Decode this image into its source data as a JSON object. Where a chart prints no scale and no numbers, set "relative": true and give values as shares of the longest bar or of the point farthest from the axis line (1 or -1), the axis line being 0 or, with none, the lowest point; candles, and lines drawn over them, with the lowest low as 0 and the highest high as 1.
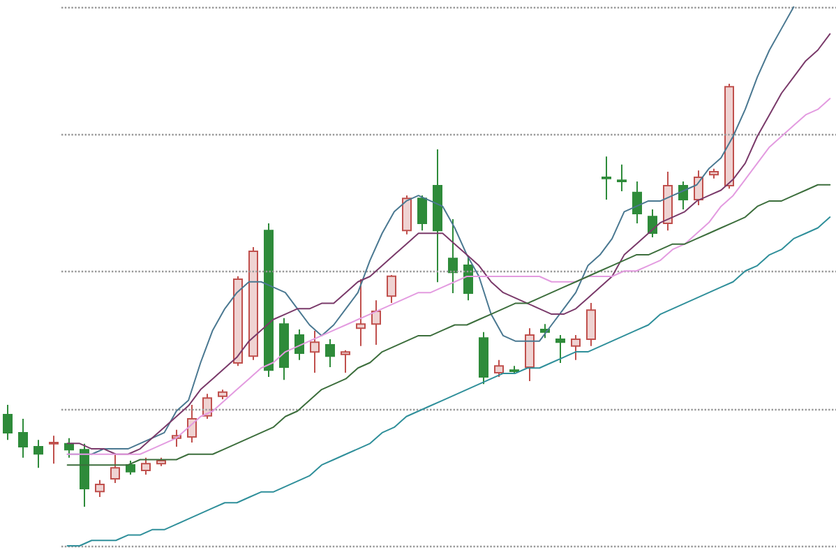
{
  "chart_data": [
    {
      "type": "candlestick",
      "relative": true,
      "categories": [
        null,
        null,
        null,
        null,
        null,
        null,
        null,
        null,
        null,
        null,
        null,
        null,
        null,
        null,
        null,
        null,
        null,
        null,
        null,
        null,
        null,
        null,
        null,
        null,
        null,
        null,
        null,
        null,
        null,
        null,
        null,
        null,
        null,
        null,
        null,
        null,
        null,
        null,
        null,
        null,
        null,
        null,
        null,
        null,
        null,
        null,
        null,
        null
      ],
      "ohlc": [
        [
          0.218,
          0.241,
          0.158,
          0.175
        ],
        [
          0.175,
          0.208,
          0.116,
          0.142
        ],
        [
          0.142,
          0.158,
          0.092,
          0.125
        ],
        [
          0.149,
          0.168,
          0.102,
          0.152
        ],
        [
          0.149,
          0.162,
          0.116,
          0.135
        ],
        [
          0.135,
          0.149,
          0,
          0.043
        ],
        [
          0.036,
          0.063,
          0.023,
          0.053
        ],
        [
          0.066,
          0.125,
          0.056,
          0.092
        ],
        [
          0.099,
          0.109,
          0.076,
          0.083
        ],
        [
          0.086,
          0.116,
          0.076,
          0.102
        ],
        [
          0.102,
          0.116,
          0.096,
          0.109
        ],
        [
          0.162,
          0.182,
          0.142,
          0.168
        ],
        [
          0.165,
          0.241,
          0.152,
          0.208
        ],
        [
          0.215,
          0.267,
          0.208,
          0.257
        ],
        [
          0.261,
          0.277,
          0.254,
          0.271
        ],
        [
          0.34,
          0.545,
          0.333,
          0.538
        ],
        [
          0.356,
          0.614,
          0.347,
          0.604
        ],
        [
          0.653,
          0.67,
          0.307,
          0.323
        ],
        [
          0.432,
          0.446,
          0.3,
          0.33
        ],
        [
          0.406,
          0.419,
          0.347,
          0.363
        ],
        [
          0.366,
          0.416,
          0.317,
          0.389
        ],
        [
          0.383,
          0.396,
          0.33,
          0.356
        ],
        [
          0.36,
          0.37,
          0.317,
          0.366
        ],
        [
          0.422,
          0.538,
          0.38,
          0.432
        ],
        [
          0.432,
          0.488,
          0.383,
          0.462
        ],
        [
          0.498,
          0.548,
          0.482,
          0.545
        ],
        [
          0.653,
          0.736,
          0.644,
          0.729
        ],
        [
          0.729,
          0.736,
          0.653,
          0.67
        ],
        [
          0.759,
          0.845,
          0.531,
          0.653
        ],
        [
          0.587,
          0.68,
          0.505,
          0.554
        ],
        [
          0.571,
          0.594,
          0.488,
          0.505
        ],
        [
          0.399,
          0.413,
          0.29,
          0.307
        ],
        [
          0.317,
          0.347,
          0.307,
          0.333
        ],
        [
          0.323,
          0.333,
          0.314,
          0.32
        ],
        [
          0.33,
          0.422,
          0.297,
          0.406
        ],
        [
          0.419,
          0.432,
          0.399,
          0.413
        ],
        [
          0.396,
          0.406,
          0.34,
          0.389
        ],
        [
          0.38,
          0.406,
          0.347,
          0.396
        ],
        [
          0.396,
          0.482,
          0.38,
          0.465
        ],
        [
          0.779,
          0.828,
          0.726,
          0.776
        ],
        [
          0.772,
          0.809,
          0.746,
          0.769
        ],
        [
          0.743,
          0.769,
          0.67,
          0.693
        ],
        [
          0.686,
          0.703,
          0.637,
          0.647
        ],
        [
          0.67,
          0.792,
          0.653,
          0.759
        ],
        [
          0.759,
          0.769,
          0.703,
          0.726
        ],
        [
          0.726,
          0.795,
          0.713,
          0.779
        ],
        [
          0.785,
          0.799,
          0.776,
          0.792
        ],
        [
          0.759,
          1,
          0.752,
          0.993
        ]
      ],
      "colors": [
        "#2e8b3a",
        "#2e8b3a",
        "#2e8b3a",
        "#c0504d",
        "#2e8b3a",
        "#2e8b3a",
        "#c0504d",
        "#c0504d",
        "#2e8b3a",
        "#c0504d",
        "#c0504d",
        "#c0504d",
        "#c0504d",
        "#c0504d",
        "#c0504d",
        "#c0504d",
        "#c0504d",
        "#2e8b3a",
        "#2e8b3a",
        "#2e8b3a",
        "#c0504d",
        "#2e8b3a",
        "#c0504d",
        "#c0504d",
        "#c0504d",
        "#c0504d",
        "#c0504d",
        "#2e8b3a",
        "#2e8b3a",
        "#2e8b3a",
        "#2e8b3a",
        "#2e8b3a",
        "#c0504d",
        "#2e8b3a",
        "#c0504d",
        "#2e8b3a",
        "#2e8b3a",
        "#c0504d",
        "#c0504d",
        "#2e8b3a",
        "#2e8b3a",
        "#2e8b3a",
        "#2e8b3a",
        "#c0504d",
        "#2e8b3a",
        "#c0504d",
        "#c0504d",
        "#c0504d"
      ]
    },
    {
      "type": "line",
      "relative": true,
      "grid": "y",
      "categories": [
        null,
        null,
        null,
        null,
        null,
        null,
        null,
        null,
        null,
        null,
        null,
        null,
        null,
        null,
        null,
        null,
        null,
        null,
        null,
        null,
        null,
        null,
        null,
        null,
        null,
        null,
        null,
        null,
        null,
        null,
        null,
        null,
        null,
        null,
        null,
        null,
        null,
        null,
        null,
        null,
        null,
        null,
        null,
        null,
        null,
        null,
        null,
        null,
        null,
        null,
        null,
        null,
        null,
        null,
        null,
        null,
        null,
        null,
        null,
        null,
        null,
        null,
        null,
        null
      ],
      "series": [
        {
          "color": "#4a7891",
          "values": [
            0.17,
            0.17,
            0.17,
            0.18,
            0.18,
            0.18,
            0.19,
            0.2,
            0.21,
            0.25,
            0.27,
            0.34,
            0.4,
            0.44,
            0.47,
            0.49,
            0.49,
            0.48,
            0.47,
            0.44,
            0.41,
            0.39,
            0.41,
            0.44,
            0.47,
            0.53,
            0.58,
            0.62,
            0.64,
            0.65,
            0.64,
            0.63,
            0.59,
            0.54,
            0.5,
            0.43,
            0.39,
            0.38,
            0.38,
            0.38,
            0.41,
            0.44,
            0.47,
            0.52,
            0.54,
            0.57,
            0.62,
            0.63,
            0.64,
            0.64,
            0.65,
            0.66,
            0.67,
            0.7,
            0.72,
            0.76,
            0.81,
            0.87,
            0.92,
            0.96,
            1,
            null,
            null,
            null
          ]
        },
        {
          "color": "#7a3a6a",
          "values": [
            0.19,
            0.19,
            0.18,
            0.18,
            0.17,
            0.17,
            0.18,
            0.2,
            0.22,
            0.24,
            0.26,
            0.29,
            0.31,
            0.33,
            0.35,
            0.38,
            0.4,
            0.42,
            0.43,
            0.44,
            0.44,
            0.45,
            0.45,
            0.47,
            0.49,
            0.5,
            0.52,
            0.54,
            0.56,
            0.58,
            0.58,
            0.58,
            0.56,
            0.54,
            0.52,
            0.49,
            0.47,
            0.46,
            0.45,
            0.44,
            0.43,
            0.43,
            0.44,
            0.46,
            0.48,
            0.5,
            0.54,
            0.56,
            0.58,
            0.6,
            0.61,
            0.62,
            0.64,
            0.65,
            0.66,
            0.68,
            0.71,
            0.76,
            0.8,
            0.84,
            0.87,
            0.9,
            0.92,
            0.95
          ]
        },
        {
          "color": "#e39be0",
          "values": [
            0.17,
            0.17,
            0.17,
            0.17,
            0.17,
            0.17,
            0.17,
            0.18,
            0.19,
            0.2,
            0.22,
            0.24,
            0.25,
            0.27,
            0.29,
            0.31,
            0.33,
            0.34,
            0.36,
            0.37,
            0.38,
            0.39,
            0.4,
            0.41,
            0.42,
            0.43,
            0.44,
            0.45,
            0.46,
            0.47,
            0.47,
            0.48,
            0.49,
            0.5,
            0.5,
            0.5,
            0.5,
            0.5,
            0.5,
            0.5,
            0.49,
            0.49,
            0.49,
            0.5,
            0.5,
            0.5,
            0.51,
            0.51,
            0.52,
            0.53,
            0.55,
            0.56,
            0.58,
            0.6,
            0.63,
            0.65,
            0.68,
            0.71,
            0.74,
            0.76,
            0.78,
            0.8,
            0.81,
            0.83
          ]
        },
        {
          "color": "#3c6e3c",
          "values": [
            0.15,
            0.15,
            0.15,
            0.15,
            0.15,
            0.15,
            0.16,
            0.16,
            0.16,
            0.16,
            0.17,
            0.17,
            0.17,
            0.18,
            0.19,
            0.2,
            0.21,
            0.22,
            0.24,
            0.25,
            0.27,
            0.29,
            0.3,
            0.31,
            0.33,
            0.34,
            0.36,
            0.37,
            0.38,
            0.39,
            0.39,
            0.4,
            0.41,
            0.41,
            0.42,
            0.43,
            0.44,
            0.45,
            0.45,
            0.46,
            0.47,
            0.48,
            0.49,
            0.5,
            0.51,
            0.52,
            0.53,
            0.54,
            0.54,
            0.55,
            0.56,
            0.56,
            0.57,
            0.58,
            0.59,
            0.6,
            0.61,
            0.63,
            0.64,
            0.64,
            0.65,
            0.66,
            0.67,
            0.67
          ]
        },
        {
          "color": "#2f8f9a",
          "values": [
            0,
            0,
            0.01,
            0.01,
            0.01,
            0.02,
            0.02,
            0.03,
            0.03,
            0.04,
            0.05,
            0.06,
            0.07,
            0.08,
            0.08,
            0.09,
            0.1,
            0.1,
            0.11,
            0.12,
            0.13,
            0.15,
            0.16,
            0.17,
            0.18,
            0.19,
            0.21,
            0.22,
            0.24,
            0.25,
            0.26,
            0.27,
            0.28,
            0.29,
            0.3,
            0.31,
            0.32,
            0.32,
            0.33,
            0.33,
            0.34,
            0.35,
            0.36,
            0.36,
            0.37,
            0.38,
            0.39,
            0.4,
            0.41,
            0.43,
            0.44,
            0.45,
            0.46,
            0.47,
            0.48,
            0.49,
            0.51,
            0.52,
            0.54,
            0.55,
            0.57,
            0.58,
            0.59,
            0.61
          ]
        }
      ]
    }
  ]
}
